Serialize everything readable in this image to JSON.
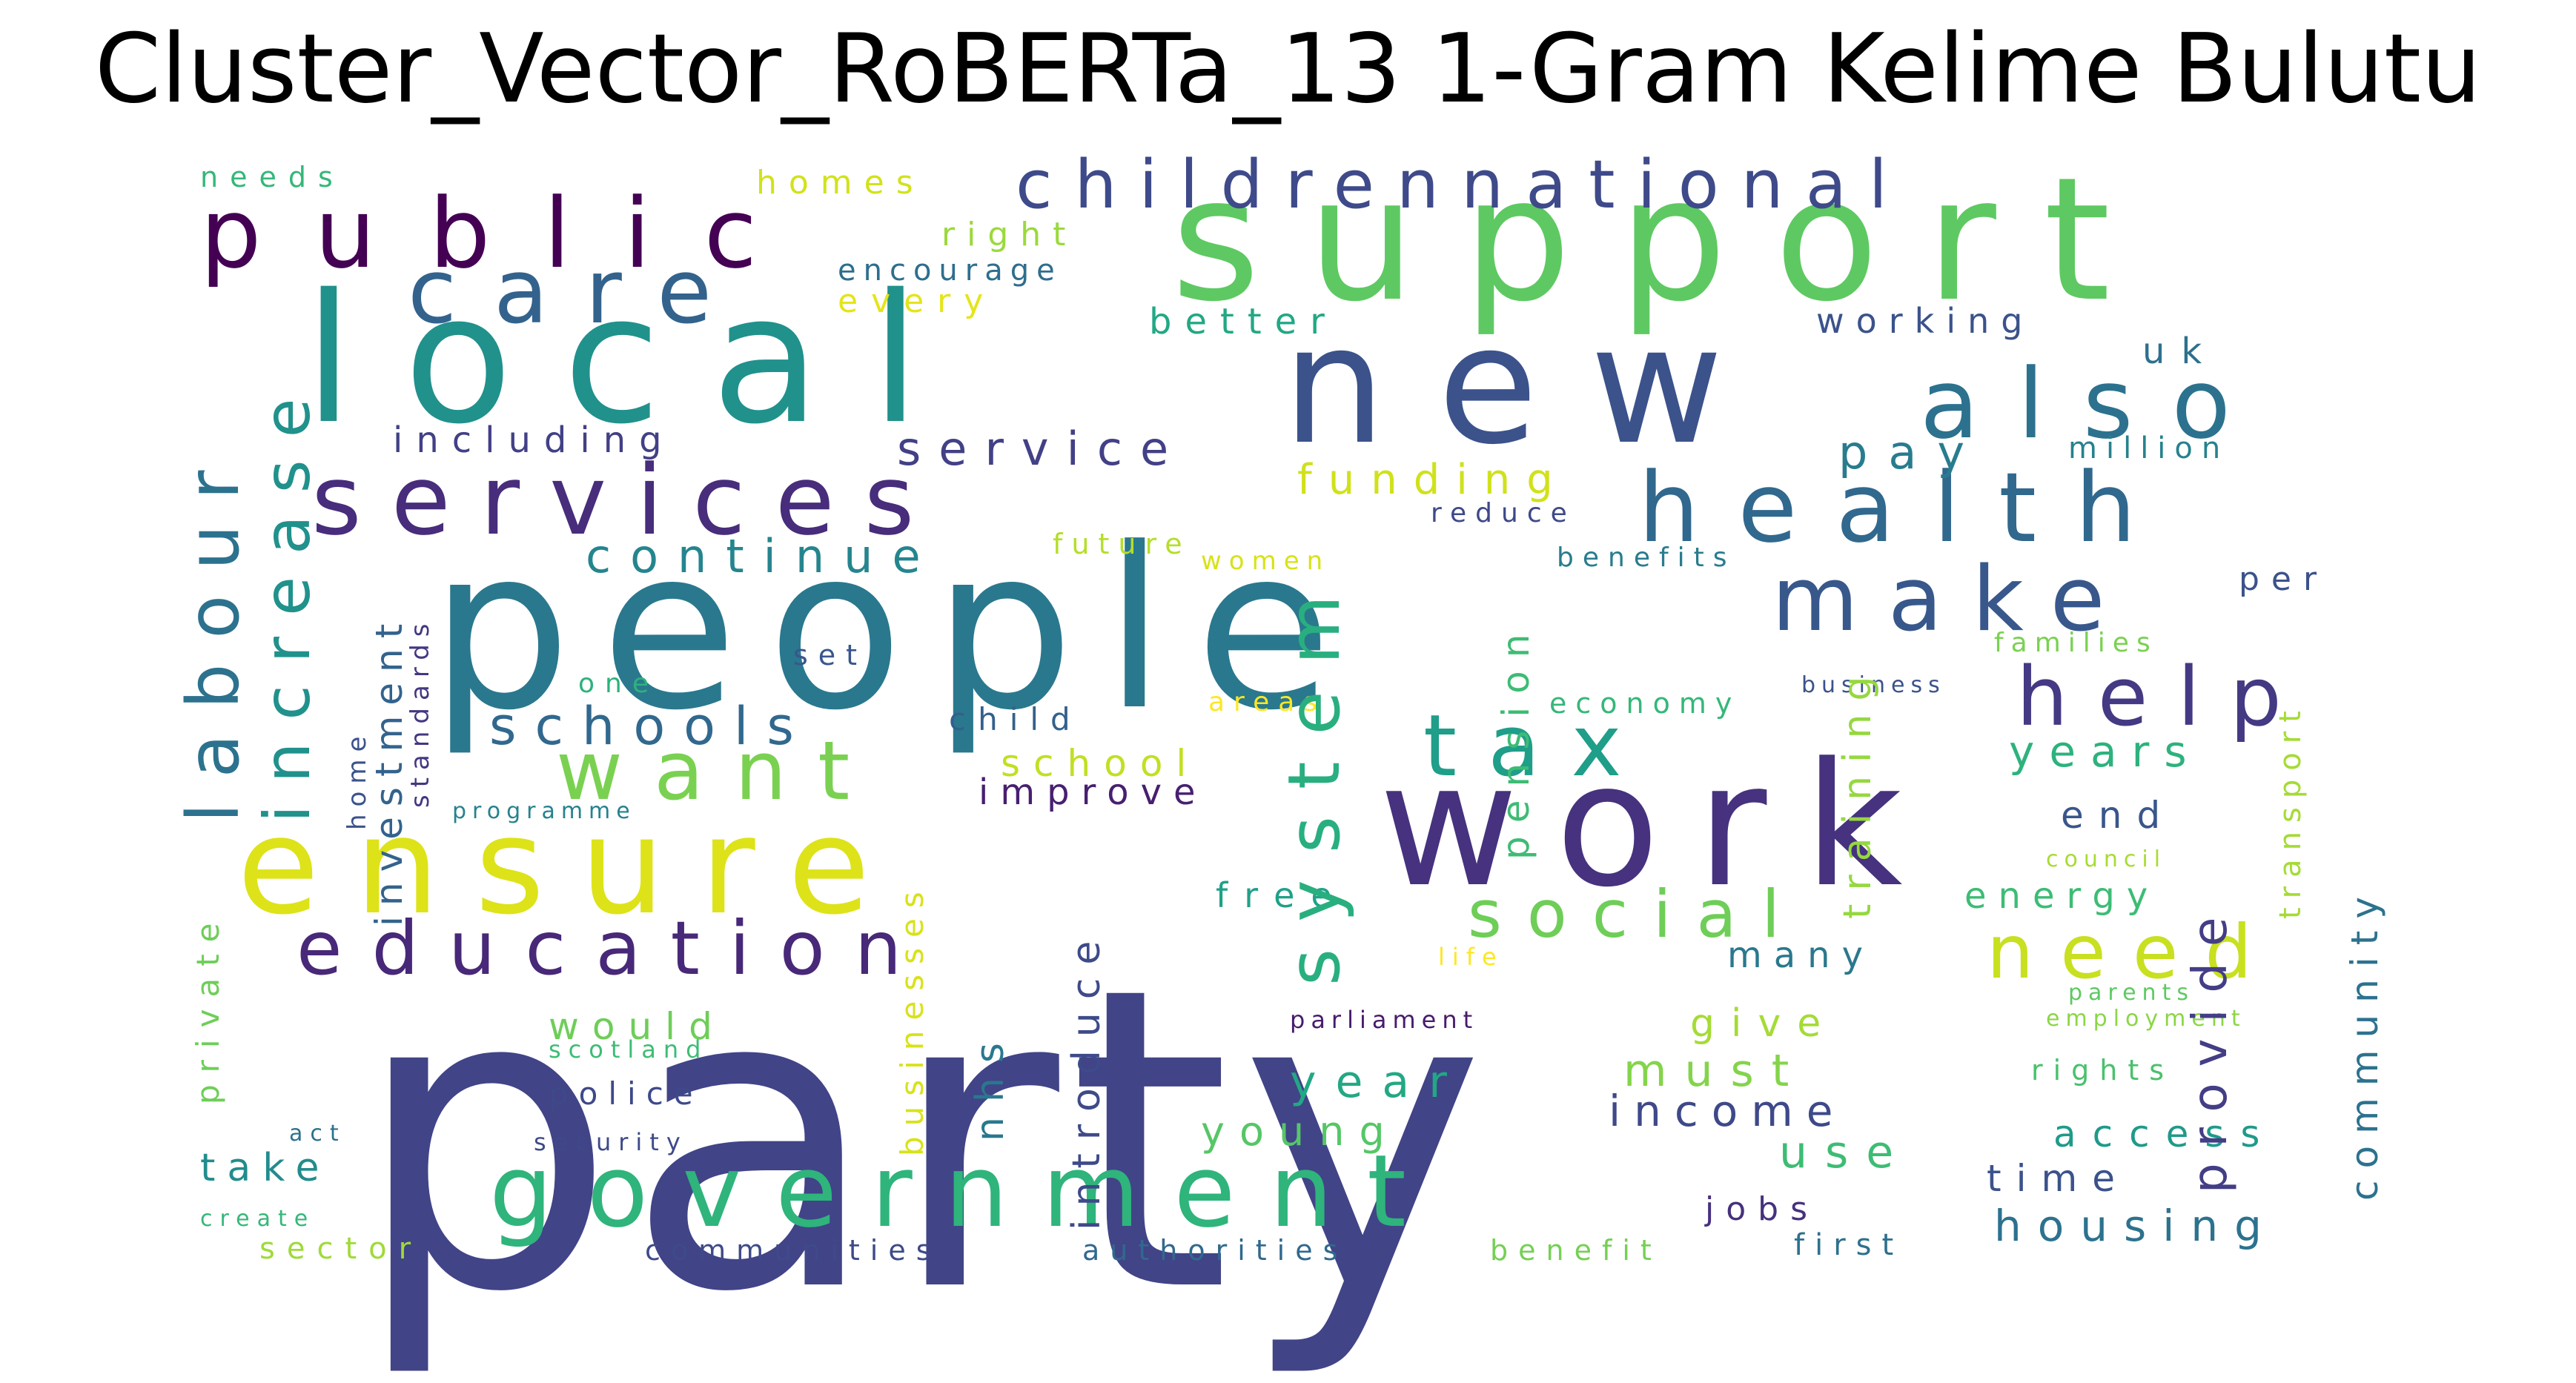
{
  "title": "Cluster_Vector_RoBERTa_13 1-Gram Kelime Bulutu",
  "palette": "viridis",
  "words": [
    {
      "text": "party",
      "color": "#414487"
    },
    {
      "text": "people",
      "color": "#2a788e"
    },
    {
      "text": "support",
      "color": "#5ec962"
    },
    {
      "text": "local",
      "color": "#21918c"
    },
    {
      "text": "new",
      "color": "#3b528b"
    },
    {
      "text": "work",
      "color": "#46327e"
    },
    {
      "text": "ensure",
      "color": "#dde318"
    },
    {
      "text": "government",
      "color": "#2fb47c"
    },
    {
      "text": "public",
      "color": "#440154"
    },
    {
      "text": "services",
      "color": "#472d7b"
    },
    {
      "text": "health",
      "color": "#31688e"
    },
    {
      "text": "also",
      "color": "#2c728e"
    },
    {
      "text": "care",
      "color": "#33638d"
    },
    {
      "text": "education",
      "color": "#482878"
    },
    {
      "text": "want",
      "color": "#7ad151"
    },
    {
      "text": "childrennational",
      "color": "#3e4a89"
    },
    {
      "text": "make",
      "color": "#38588c"
    },
    {
      "text": "help",
      "color": "#443983"
    },
    {
      "text": "tax",
      "color": "#1f9e89"
    },
    {
      "text": "need",
      "color": "#c8e020"
    },
    {
      "text": "social",
      "color": "#6ece58"
    },
    {
      "text": "system",
      "color": "#29af7f"
    },
    {
      "text": "schools",
      "color": "#31688e"
    },
    {
      "text": "labour",
      "color": "#2c728e"
    },
    {
      "text": "increase",
      "color": "#21918c"
    },
    {
      "text": "continue",
      "color": "#25858e"
    },
    {
      "text": "service",
      "color": "#424086"
    },
    {
      "text": "funding",
      "color": "#d0e11c"
    },
    {
      "text": "must",
      "color": "#84d44b"
    },
    {
      "text": "year",
      "color": "#22a884"
    },
    {
      "text": "income",
      "color": "#3e4989"
    },
    {
      "text": "use",
      "color": "#3dbc74"
    },
    {
      "text": "young",
      "color": "#56c667"
    },
    {
      "text": "housing",
      "color": "#2c728e"
    },
    {
      "text": "access",
      "color": "#1f9a8a"
    },
    {
      "text": "time",
      "color": "#3b528b"
    },
    {
      "text": "pay",
      "color": "#287c8e"
    },
    {
      "text": "years",
      "color": "#2db27d"
    },
    {
      "text": "end",
      "color": "#39568c"
    },
    {
      "text": "energy",
      "color": "#3dbc74"
    },
    {
      "text": "many",
      "color": "#2a788e"
    },
    {
      "text": "give",
      "color": "#a5db36"
    },
    {
      "text": "free",
      "color": "#1fa188"
    },
    {
      "text": "improve",
      "color": "#481f70"
    },
    {
      "text": "school",
      "color": "#c2df23"
    },
    {
      "text": "child",
      "color": "#34608d"
    },
    {
      "text": "would",
      "color": "#6ece58"
    },
    {
      "text": "police",
      "color": "#3e4989"
    },
    {
      "text": "take",
      "color": "#228c8d"
    },
    {
      "text": "sector",
      "color": "#a0da39"
    },
    {
      "text": "communities",
      "color": "#3e4a89"
    },
    {
      "text": "authorities",
      "color": "#31688e"
    },
    {
      "text": "benefit",
      "color": "#75d054"
    },
    {
      "text": "first",
      "color": "#2d708e"
    },
    {
      "text": "jobs",
      "color": "#46307e"
    },
    {
      "text": "including",
      "color": "#424086"
    },
    {
      "text": "better",
      "color": "#22a884"
    },
    {
      "text": "working",
      "color": "#3b528b"
    },
    {
      "text": "uk",
      "color": "#2d708e"
    },
    {
      "text": "million",
      "color": "#26828e"
    },
    {
      "text": "homes",
      "color": "#d2e21b"
    },
    {
      "text": "right",
      "color": "#9bd93c"
    },
    {
      "text": "encourage",
      "color": "#2e6e8e"
    },
    {
      "text": "every",
      "color": "#e5e419"
    },
    {
      "text": "needs",
      "color": "#35b779"
    },
    {
      "text": "reduce",
      "color": "#3e4989"
    },
    {
      "text": "benefits",
      "color": "#287c8e"
    },
    {
      "text": "future",
      "color": "#b5de2b"
    },
    {
      "text": "women",
      "color": "#d8e219"
    },
    {
      "text": "set",
      "color": "#39568c"
    },
    {
      "text": "one",
      "color": "#2db27d"
    },
    {
      "text": "areas",
      "color": "#fde725"
    },
    {
      "text": "economy",
      "color": "#35b779"
    },
    {
      "text": "business",
      "color": "#3b528b"
    },
    {
      "text": "per",
      "color": "#3b528b"
    },
    {
      "text": "families",
      "color": "#7ad151"
    },
    {
      "text": "council",
      "color": "#a8db34"
    },
    {
      "text": "life",
      "color": "#fde725"
    },
    {
      "text": "parents",
      "color": "#5ec962"
    },
    {
      "text": "employment",
      "color": "#8bd646"
    },
    {
      "text": "rights",
      "color": "#4ac16d"
    },
    {
      "text": "parliament",
      "color": "#481b6d"
    },
    {
      "text": "scotland",
      "color": "#3dbc74"
    },
    {
      "text": "security",
      "color": "#3e4989"
    },
    {
      "text": "act",
      "color": "#2c728e"
    },
    {
      "text": "create",
      "color": "#35b779"
    },
    {
      "text": "programme",
      "color": "#26828e"
    },
    {
      "text": "private",
      "color": "#6ece58"
    },
    {
      "text": "home",
      "color": "#3b528b"
    },
    {
      "text": "investment",
      "color": "#33638d"
    },
    {
      "text": "standards",
      "color": "#453781"
    },
    {
      "text": "introduce",
      "color": "#3e4a89"
    },
    {
      "text": "businesses",
      "color": "#d8e219"
    },
    {
      "text": "nhs",
      "color": "#2a788e"
    },
    {
      "text": "pension",
      "color": "#3dbc74"
    },
    {
      "text": "training",
      "color": "#95d840"
    },
    {
      "text": "provide",
      "color": "#433e85"
    },
    {
      "text": "transport",
      "color": "#a5db36"
    },
    {
      "text": "community",
      "color": "#2c728e"
    }
  ]
}
